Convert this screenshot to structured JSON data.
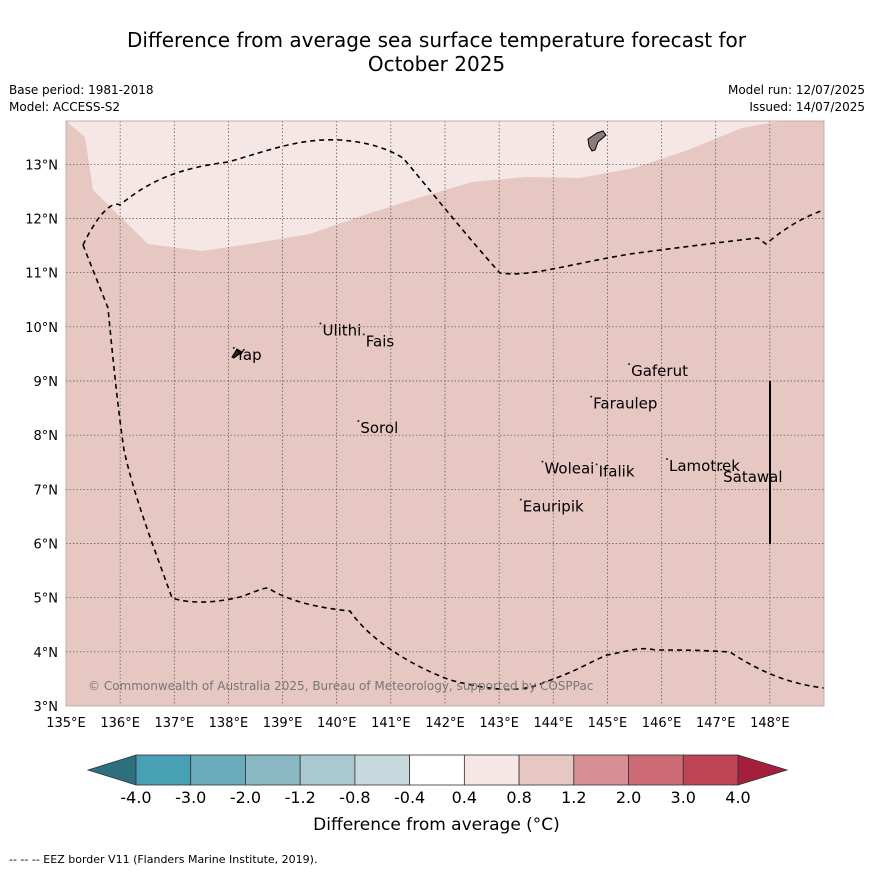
{
  "title": {
    "line1": "Difference from average sea surface temperature forecast for",
    "line2": "October 2025"
  },
  "meta": {
    "base_period": "Base period: 1981-2018",
    "model": "Model: ACCESS-S2",
    "model_run": "Model run: 12/07/2025",
    "issued": "Issued: 14/07/2025"
  },
  "map": {
    "lon_labels": [
      "135°E",
      "136°E",
      "137°E",
      "138°E",
      "139°E",
      "140°E",
      "141°E",
      "142°E",
      "143°E",
      "144°E",
      "145°E",
      "146°E",
      "147°E",
      "148°E"
    ],
    "lat_labels": [
      "3°N",
      "4°N",
      "5°N",
      "6°N",
      "7°N",
      "8°N",
      "9°N",
      "10°N",
      "11°N",
      "12°N",
      "13°N"
    ],
    "lon_range": [
      135,
      149
    ],
    "lat_range": [
      3,
      13.8
    ],
    "grid": true,
    "fill_colors": {
      "band_0_4_to_0_8": "#f4e7e6",
      "band_0_8_to_1_2": "#e6c7c2"
    },
    "places": [
      {
        "name": "Yap",
        "lon": 138.1,
        "lat": 9.5
      },
      {
        "name": "Ulithi",
        "lon": 139.7,
        "lat": 9.95
      },
      {
        "name": "Fais",
        "lon": 140.5,
        "lat": 9.75
      },
      {
        "name": "Sorol",
        "lon": 140.4,
        "lat": 8.15
      },
      {
        "name": "Gaferut",
        "lon": 145.4,
        "lat": 9.2
      },
      {
        "name": "Faraulep",
        "lon": 144.7,
        "lat": 8.6
      },
      {
        "name": "Woleai",
        "lon": 143.8,
        "lat": 7.4
      },
      {
        "name": "Ifalik",
        "lon": 144.8,
        "lat": 7.35
      },
      {
        "name": "Lamotrek",
        "lon": 146.1,
        "lat": 7.45
      },
      {
        "name": "Satawal",
        "lon": 147.1,
        "lat": 7.25
      },
      {
        "name": "Eauripik",
        "lon": 143.4,
        "lat": 6.7
      }
    ],
    "copyright": "© Commonwealth of Australia 2025, Bureau of Meteorology, supported by COSPPac"
  },
  "colorbar": {
    "colors": [
      "#2d6f7c",
      "#47a0b3",
      "#6aacbc",
      "#8ab7c4",
      "#a9c8cf",
      "#c7d9dd",
      "#ffffff",
      "#f4e7e6",
      "#e6c7c2",
      "#d78f95",
      "#cc6b76",
      "#bf4555",
      "#a51e3c"
    ],
    "tick_labels": [
      "-4.0",
      "-3.0",
      "-2.0",
      "-1.2",
      "-0.8",
      "-0.4",
      "0.4",
      "0.8",
      "1.2",
      "2.0",
      "3.0",
      "4.0"
    ],
    "label": "Difference from average (°C)"
  },
  "footer": "--  --  -- EEZ border V11 (Flanders Marine Institute, 2019)."
}
